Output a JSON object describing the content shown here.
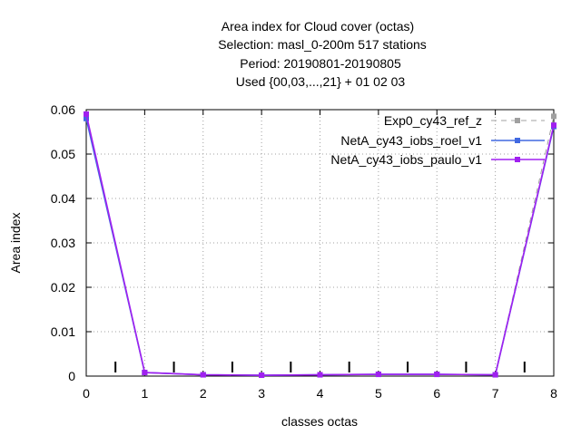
{
  "chart_data": {
    "type": "line",
    "title_lines": [
      "Area index  for Cloud cover (octas)",
      "Selection: masl_0-200m    517 stations",
      "Period: 20190801-20190805",
      "Used {00,03,...,21} + 01 02 03"
    ],
    "xlabel": "classes octas",
    "ylabel": "Area index",
    "xlim": [
      0,
      8
    ],
    "ylim": [
      0,
      0.06
    ],
    "x_ticks": [
      "0",
      "1",
      "2",
      "3",
      "4",
      "5",
      "6",
      "7",
      "8"
    ],
    "y_ticks": [
      "0",
      "0.01",
      "0.02",
      "0.03",
      "0.04",
      "0.05",
      "0.06"
    ],
    "grid": true,
    "legend_position": "top-right",
    "x": [
      0,
      1,
      2,
      3,
      4,
      5,
      6,
      7,
      8
    ],
    "series": [
      {
        "name": "Exp0_cy43_ref_z",
        "color": "#a0a0a0",
        "dash": "dashed",
        "marker": "square",
        "values": [
          0.0582,
          0.0008,
          0.0003,
          0.0002,
          0.0003,
          0.0004,
          0.0004,
          0.0003,
          0.0585
        ]
      },
      {
        "name": "NetA_cy43_iobs_roel_v1",
        "color": "#4169e1",
        "dash": "solid",
        "marker": "square",
        "values": [
          0.058,
          0.0008,
          0.0003,
          0.0002,
          0.0003,
          0.0004,
          0.0004,
          0.0003,
          0.0562
        ]
      },
      {
        "name": "NetA_cy43_iobs_paulo_v1",
        "color": "#a020f0",
        "dash": "solid",
        "marker": "square",
        "values": [
          0.059,
          0.0008,
          0.0003,
          0.0002,
          0.0003,
          0.0004,
          0.0004,
          0.0003,
          0.0565
        ]
      }
    ],
    "marker_ticks_x": [
      0.5,
      1.5,
      2.5,
      3.5,
      4.5,
      5.5,
      6.5,
      7.5
    ]
  }
}
